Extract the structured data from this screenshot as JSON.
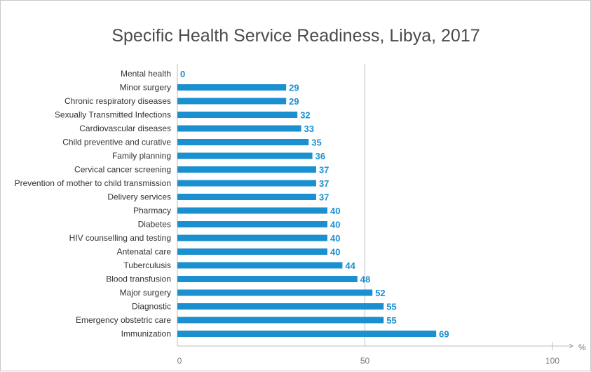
{
  "chart_data": {
    "type": "bar",
    "orientation": "horizontal",
    "title": "Specific Health Service Readiness, Libya, 2017",
    "categories": [
      "Mental health",
      "Minor surgery",
      "Chronic respiratory diseases",
      "Sexually Transmitted Infections",
      "Cardiovascular diseases",
      "Child preventive and curative",
      "Family planning",
      "Cervical cancer screening",
      "Prevention of mother to child transmission",
      "Delivery services",
      "Pharmacy",
      "Diabetes",
      "HIV counselling and testing",
      "Antenatal care",
      "Tuberculusis",
      "Blood transfusion",
      "Major surgery",
      "Diagnostic",
      "Emergency obstetric care",
      "Immunization"
    ],
    "values": [
      0,
      29,
      29,
      32,
      33,
      35,
      36,
      37,
      37,
      37,
      40,
      40,
      40,
      40,
      44,
      48,
      52,
      55,
      55,
      69
    ],
    "xlim": [
      0,
      100
    ],
    "xticks": [
      "0",
      "50",
      "100"
    ],
    "xunit": "%",
    "grid": "vertical line at 50",
    "legend": "none",
    "bar_color": "#1a90d0",
    "label_color": "#1a90d0",
    "gridline_color": "#bdbdbd"
  }
}
